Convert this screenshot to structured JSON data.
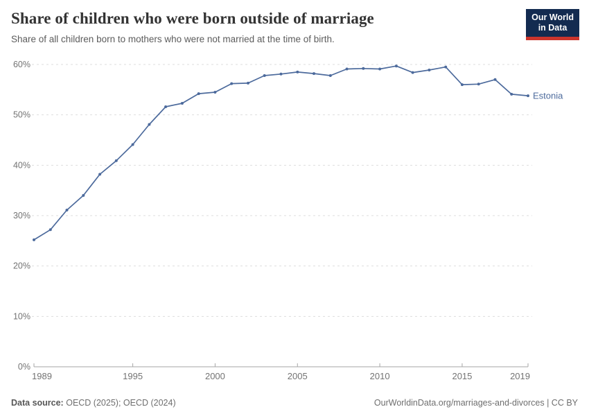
{
  "header": {
    "title": "Share of children who were born outside of marriage",
    "subtitle": "Share of all children born to mothers who were not married at the time of birth.",
    "logo": {
      "line1": "Our World",
      "line2": "in Data"
    }
  },
  "chart_data": {
    "type": "line",
    "title": "Share of children who were born outside of marriage",
    "xlabel": "",
    "ylabel": "",
    "x": [
      1989,
      1990,
      1991,
      1992,
      1993,
      1994,
      1995,
      1996,
      1997,
      1998,
      1999,
      2000,
      2001,
      2002,
      2003,
      2004,
      2005,
      2006,
      2007,
      2008,
      2009,
      2010,
      2011,
      2012,
      2013,
      2014,
      2015,
      2016,
      2017,
      2018,
      2019
    ],
    "series": [
      {
        "name": "Estonia",
        "values": [
          25.2,
          27.2,
          31.1,
          34.0,
          38.2,
          40.9,
          44.1,
          48.1,
          51.6,
          52.3,
          54.2,
          54.5,
          56.2,
          56.3,
          57.8,
          58.1,
          58.5,
          58.2,
          57.8,
          59.1,
          59.2,
          59.1,
          59.7,
          58.4,
          58.9,
          59.5,
          56.0,
          56.1,
          57.0,
          54.1,
          53.8
        ],
        "color": "#4c6a9c"
      }
    ],
    "xlim": [
      1989,
      2019
    ],
    "ylim": [
      0,
      60
    ],
    "x_ticks": [
      1989,
      1995,
      2000,
      2005,
      2010,
      2015,
      2019
    ],
    "y_ticks": [
      0,
      10,
      20,
      30,
      40,
      50,
      60
    ],
    "y_tick_suffix": "%",
    "grid": "horizontal-dashed",
    "legend_position": "end-of-line",
    "end_label": "Estonia"
  },
  "footer": {
    "source_label": "Data source:",
    "source_value": "OECD (2025); OECD (2024)",
    "credit": "OurWorldinData.org/marriages-and-divorces | CC BY"
  },
  "colors": {
    "line": "#4c6a9c",
    "grid": "#dddddd",
    "axis": "#a6a6a6",
    "tick_label": "#737373",
    "logo_bg": "#132b50",
    "logo_bar": "#cc352c"
  }
}
